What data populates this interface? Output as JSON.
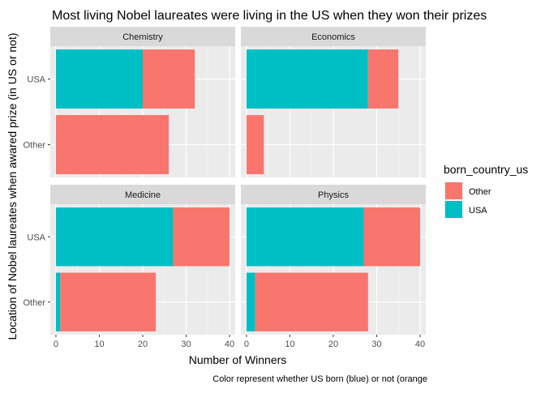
{
  "chart_data": {
    "type": "bar",
    "orientation": "horizontal",
    "stacked": true,
    "title": "Most living Nobel laureates were living in the US when they won their prizes",
    "xlabel": "Number of Winners",
    "ylabel": "Location of Nobel laureates when awared prize (in US or not)",
    "caption": "Color represent whether US born (blue) or not (orange",
    "xlim": [
      -1.3,
      41.3
    ],
    "x_ticks": [
      "0",
      "10",
      "20",
      "30",
      "40"
    ],
    "categories": [
      "USA",
      "Other"
    ],
    "grid": true,
    "legend": {
      "title": "born_country_us",
      "position": "right",
      "items": [
        {
          "label": "Other",
          "color": "#F8766D"
        },
        {
          "label": "USA",
          "color": "#00BFC4"
        }
      ]
    },
    "facets": [
      {
        "name": "Chemistry",
        "bars": [
          {
            "category": "USA",
            "USA": 20,
            "Other": 12
          },
          {
            "category": "Other",
            "USA": 0,
            "Other": 26
          }
        ]
      },
      {
        "name": "Economics",
        "bars": [
          {
            "category": "USA",
            "USA": 28,
            "Other": 7
          },
          {
            "category": "Other",
            "USA": 0,
            "Other": 4
          }
        ]
      },
      {
        "name": "Medicine",
        "bars": [
          {
            "category": "USA",
            "USA": 27,
            "Other": 13
          },
          {
            "category": "Other",
            "USA": 1,
            "Other": 22
          }
        ]
      },
      {
        "name": "Physics",
        "bars": [
          {
            "category": "USA",
            "USA": 27,
            "Other": 13
          },
          {
            "category": "Other",
            "USA": 2,
            "Other": 26
          }
        ]
      }
    ]
  }
}
